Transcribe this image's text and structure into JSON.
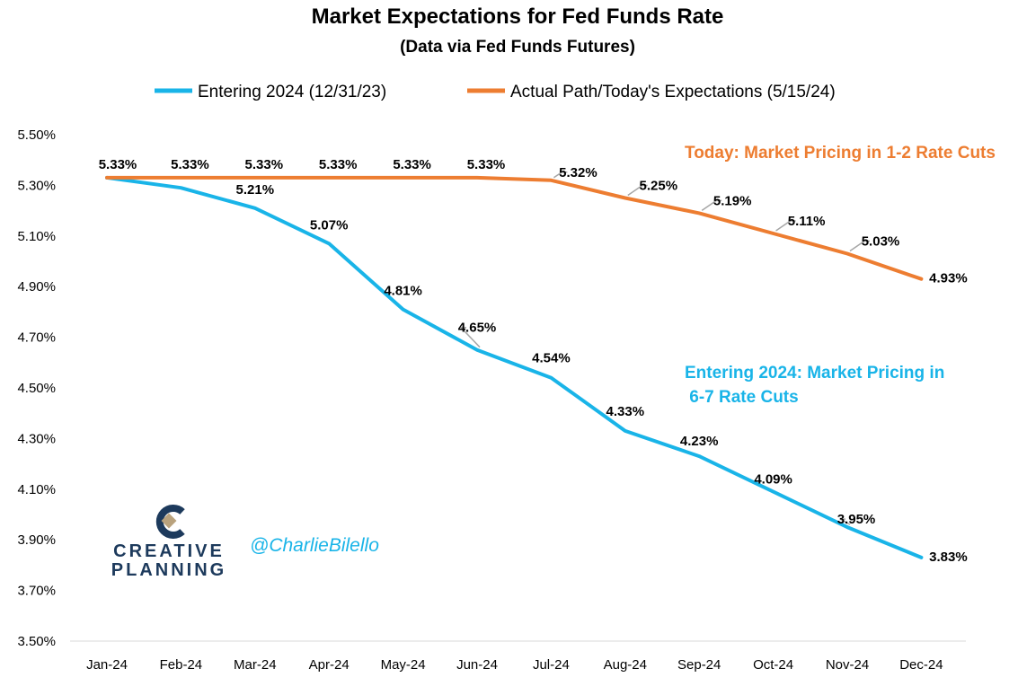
{
  "chart_data": {
    "type": "line",
    "title": "Market Expectations for Fed Funds Rate",
    "subtitle": "(Data via Fed Funds Futures)",
    "categories": [
      "Jan-24",
      "Feb-24",
      "Mar-24",
      "Apr-24",
      "May-24",
      "Jun-24",
      "Jul-24",
      "Aug-24",
      "Sep-24",
      "Oct-24",
      "Nov-24",
      "Dec-24"
    ],
    "ylim": [
      3.5,
      5.5
    ],
    "y_ticks": [
      "5.50%",
      "5.30%",
      "5.10%",
      "4.90%",
      "4.70%",
      "4.50%",
      "4.30%",
      "4.10%",
      "3.90%",
      "3.70%",
      "3.50%"
    ],
    "y_tick_values": [
      5.5,
      5.3,
      5.1,
      4.9,
      4.7,
      4.5,
      4.3,
      4.1,
      3.9,
      3.7,
      3.5
    ],
    "grid": false,
    "legend_position": "top",
    "series": [
      {
        "name": "Entering 2024 (12/31/23)",
        "color": "#19b4e8",
        "values": [
          5.33,
          5.29,
          5.21,
          5.07,
          4.81,
          4.65,
          4.54,
          4.33,
          4.23,
          4.09,
          3.95,
          3.83
        ],
        "labels": [
          "",
          "",
          "5.21%",
          "5.07%",
          "4.81%",
          "4.65%",
          "4.54%",
          "4.33%",
          "4.23%",
          "4.09%",
          "3.95%",
          "3.83%"
        ]
      },
      {
        "name": "Actual Path/Today's Expectations (5/15/24)",
        "color": "#ed7d31",
        "values": [
          5.33,
          5.33,
          5.33,
          5.33,
          5.33,
          5.33,
          5.32,
          5.25,
          5.19,
          5.11,
          5.03,
          4.93
        ],
        "labels": [
          "5.33%",
          "5.33%",
          "5.33%",
          "5.33%",
          "5.33%",
          "5.33%",
          "5.32%",
          "5.25%",
          "5.19%",
          "5.11%",
          "5.03%",
          "4.93%"
        ]
      }
    ],
    "annotations": {
      "orange": "Today:  Market Pricing in 1-2 Rate Cuts",
      "blue_line1": "Entering 2024: Market Pricing in",
      "blue_line2": " 6-7 Rate Cuts"
    }
  },
  "branding": {
    "logo_line1": "CREATIVE",
    "logo_line2": "PLANNING",
    "handle": "@CharlieBilello"
  }
}
